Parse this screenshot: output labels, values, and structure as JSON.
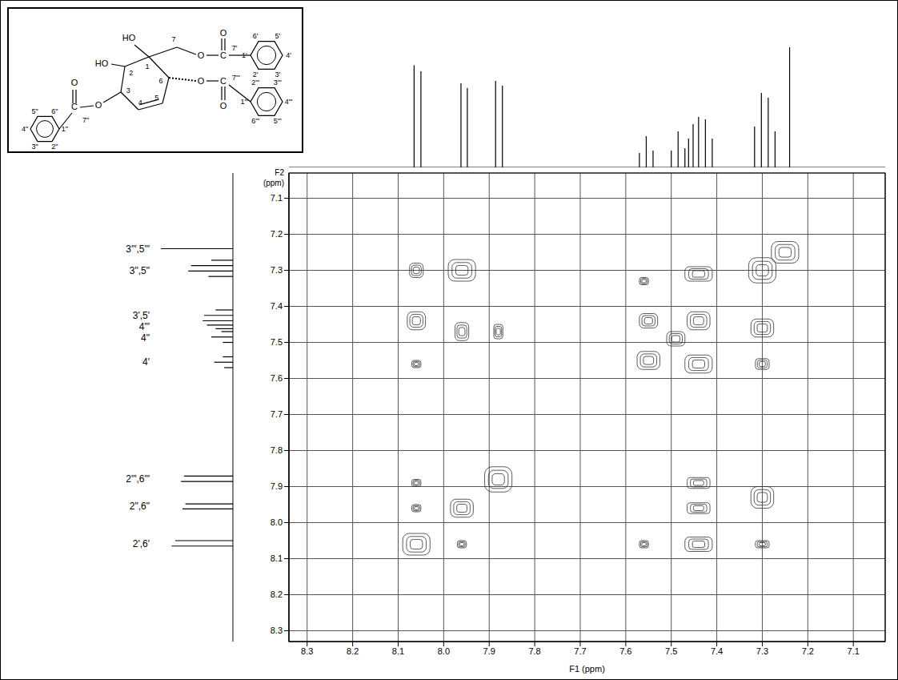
{
  "chart_data": {
    "type": "cosy",
    "x_label": "F1 (ppm)",
    "y_label": "F2 (ppm)",
    "xlim": [
      8.34,
      7.03
    ],
    "xticks": [
      8.3,
      8.2,
      8.1,
      {
        "value": 8,
        "label": "8.0"
      },
      7.9,
      7.8,
      7.7,
      7.6,
      7.5,
      7.4,
      7.3,
      7.2,
      7.1
    ],
    "ylim": [
      7.03,
      8.33
    ],
    "yticks": [
      7.1,
      7.2,
      7.3,
      7.4,
      7.5,
      7.6,
      7.7,
      7.8,
      7.9,
      {
        "value": 8,
        "label": "8.0"
      },
      8.1,
      8.2,
      8.3
    ],
    "grid": true,
    "cross_peaks": [
      {
        "x": 8.06,
        "y": 8.06,
        "w": 0.06,
        "h": 0.06
      },
      {
        "x": 7.96,
        "y": 7.96,
        "w": 0.05,
        "h": 0.05
      },
      {
        "x": 7.88,
        "y": 7.88,
        "w": 0.06,
        "h": 0.07
      },
      {
        "x": 7.55,
        "y": 7.55,
        "w": 0.05,
        "h": 0.05
      },
      {
        "x": 7.49,
        "y": 7.49,
        "w": 0.04,
        "h": 0.04
      },
      {
        "x": 7.44,
        "y": 7.44,
        "w": 0.05,
        "h": 0.05
      },
      {
        "x": 7.3,
        "y": 7.3,
        "w": 0.06,
        "h": 0.07
      },
      {
        "x": 7.25,
        "y": 7.25,
        "w": 0.06,
        "h": 0.06
      },
      {
        "x": 8.06,
        "y": 7.3,
        "w": 0.03,
        "h": 0.04
      },
      {
        "x": 7.96,
        "y": 7.3,
        "w": 0.06,
        "h": 0.06
      },
      {
        "x": 8.06,
        "y": 7.44,
        "w": 0.04,
        "h": 0.05
      },
      {
        "x": 8.06,
        "y": 7.56,
        "w": 0.02,
        "h": 0.02
      },
      {
        "x": 7.96,
        "y": 7.47,
        "w": 0.03,
        "h": 0.05
      },
      {
        "x": 7.88,
        "y": 7.47,
        "w": 0.02,
        "h": 0.04
      },
      {
        "x": 8.06,
        "y": 7.96,
        "w": 0.02,
        "h": 0.02
      },
      {
        "x": 8.06,
        "y": 7.89,
        "w": 0.02,
        "h": 0.02
      },
      {
        "x": 7.96,
        "y": 8.06,
        "w": 0.02,
        "h": 0.02
      },
      {
        "x": 7.56,
        "y": 7.33,
        "w": 0.02,
        "h": 0.02
      },
      {
        "x": 7.44,
        "y": 7.31,
        "w": 0.06,
        "h": 0.04
      },
      {
        "x": 7.55,
        "y": 7.44,
        "w": 0.04,
        "h": 0.04
      },
      {
        "x": 7.3,
        "y": 7.46,
        "w": 0.05,
        "h": 0.05
      },
      {
        "x": 7.44,
        "y": 7.56,
        "w": 0.06,
        "h": 0.05
      },
      {
        "x": 7.3,
        "y": 7.56,
        "w": 0.03,
        "h": 0.03
      },
      {
        "x": 7.56,
        "y": 8.06,
        "w": 0.02,
        "h": 0.02
      },
      {
        "x": 7.44,
        "y": 8.06,
        "w": 0.06,
        "h": 0.04
      },
      {
        "x": 7.3,
        "y": 8.06,
        "w": 0.03,
        "h": 0.02
      },
      {
        "x": 7.44,
        "y": 7.96,
        "w": 0.05,
        "h": 0.03
      },
      {
        "x": 7.3,
        "y": 7.93,
        "w": 0.05,
        "h": 0.06
      },
      {
        "x": 7.44,
        "y": 7.89,
        "w": 0.05,
        "h": 0.03
      }
    ],
    "spectrum": {
      "intensity_lim": [
        0,
        100
      ],
      "lines": [
        {
          "x": 8.065,
          "height": 85
        },
        {
          "x": 8.05,
          "height": 80
        },
        {
          "x": 7.962,
          "height": 70
        },
        {
          "x": 7.948,
          "height": 66
        },
        {
          "x": 7.886,
          "height": 72
        },
        {
          "x": 7.871,
          "height": 68
        },
        {
          "x": 7.57,
          "height": 12
        },
        {
          "x": 7.555,
          "height": 26
        },
        {
          "x": 7.54,
          "height": 14
        },
        {
          "x": 7.5,
          "height": 14
        },
        {
          "x": 7.485,
          "height": 30
        },
        {
          "x": 7.47,
          "height": 16
        },
        {
          "x": 7.462,
          "height": 24
        },
        {
          "x": 7.452,
          "height": 36
        },
        {
          "x": 7.44,
          "height": 42
        },
        {
          "x": 7.425,
          "height": 40
        },
        {
          "x": 7.41,
          "height": 24
        },
        {
          "x": 7.317,
          "height": 34
        },
        {
          "x": 7.302,
          "height": 62
        },
        {
          "x": 7.287,
          "height": 58
        },
        {
          "x": 7.272,
          "height": 30
        },
        {
          "x": 7.24,
          "height": 100
        }
      ],
      "labels": [
        {
          "text": "3'\",5'\"",
          "x": 7.24
        },
        {
          "text": "3\",5\"",
          "x": 7.3
        },
        {
          "text": "3',5'",
          "x": 7.425
        },
        {
          "text": "4'\"",
          "x": 7.452
        },
        {
          "text": "4\"",
          "x": 7.487
        },
        {
          "text": "4'",
          "x": 7.555
        },
        {
          "text": "2'\",6'\"",
          "x": 7.878
        },
        {
          "text": "2\",6\"",
          "x": 7.955
        },
        {
          "text": "2',6'",
          "x": 8.058
        }
      ]
    }
  },
  "structure": {
    "labels": [
      "HO",
      "HO",
      "1",
      "2",
      "3",
      "4",
      "5",
      "6",
      "7",
      "O",
      "C",
      "O",
      "7'",
      "O",
      "C",
      "O",
      "7'\"",
      "O",
      "C",
      "O",
      "7\"",
      "1'",
      "2'",
      "3'",
      "4'",
      "5'",
      "6'",
      "1'\"",
      "2'\"",
      "3'\"",
      "4'\"",
      "5'\"",
      "6'\"",
      "1\"",
      "2\"",
      "3\"",
      "4\"",
      "5\"",
      "6\""
    ]
  }
}
